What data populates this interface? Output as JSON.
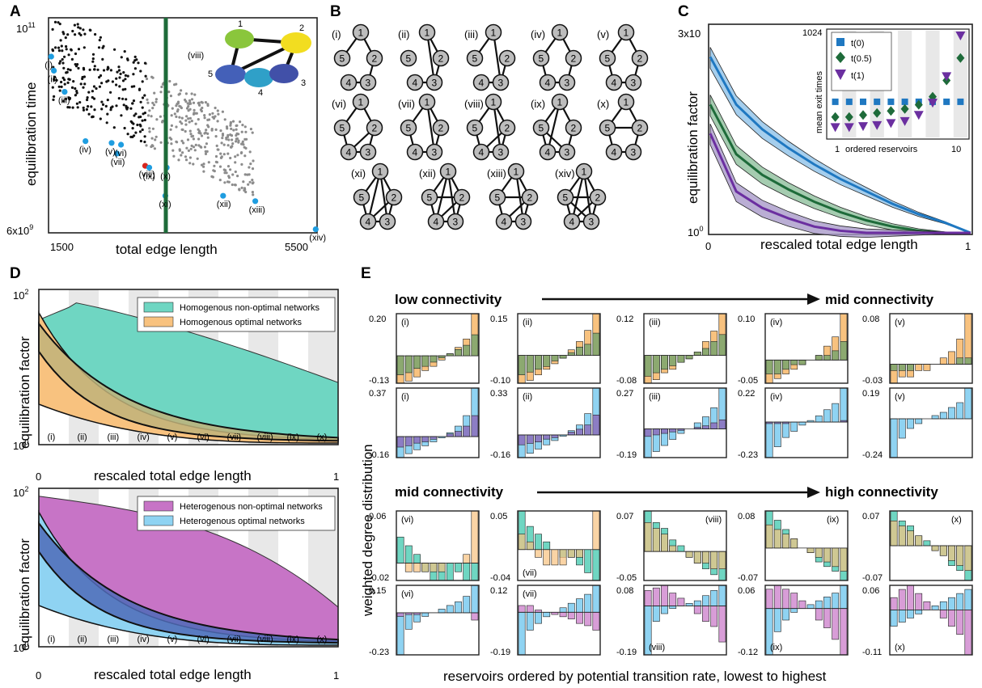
{
  "panel_labels": {
    "A": "A",
    "B": "B",
    "C": "C",
    "D": "D",
    "E": "E"
  },
  "colors": {
    "black": "#111111",
    "gray": "#8c8c8c",
    "blue": "#1f9de0",
    "red": "#d7261e",
    "green": "#2e7d4a",
    "purple": "#6b2fa0",
    "teal": "#6fd6c2",
    "orange": "#f8c27f",
    "hetero_purple": "#c774c6",
    "light_blue": "#8fd3f2",
    "band": "#e8e8e8"
  },
  "panelA": {
    "ylabel": "equilibration time",
    "xlabel": "total edge length",
    "ytick_top": "10",
    "ytick_top_sup": "11",
    "ytick_bottom": "6x10",
    "ytick_bottom_sup": "9",
    "xtick_left": "1500",
    "xtick_right": "5500",
    "inset_network_label": "(viii)",
    "inset_nodes": [
      "1",
      "2",
      "3",
      "4",
      "5"
    ],
    "point_labels": [
      "(i)",
      "(ii)",
      "(iii)",
      "(iv)",
      "(v)",
      "(vi)",
      "(vii)",
      "(viii)",
      "(ix)",
      "(x)",
      "(xi)",
      "(xii)",
      "(xiii)",
      "(xiv)"
    ]
  },
  "panelB": {
    "network_labels": [
      "(i)",
      "(ii)",
      "(iii)",
      "(iv)",
      "(v)",
      "(vi)",
      "(vii)",
      "(viii)",
      "(ix)",
      "(x)",
      "(xi)",
      "(xii)",
      "(xiii)",
      "(xiv)"
    ],
    "node_labels": [
      "1",
      "2",
      "3",
      "4",
      "5"
    ]
  },
  "panelC": {
    "ylabel": "equilibration factor",
    "xlabel": "rescaled total edge length",
    "ytick_top": "3x10",
    "ytick_bottom": "10",
    "ytick_bottom_sup": "0",
    "xtick_left": "0",
    "xtick_right": "1",
    "inset": {
      "ylabel": "mean exit times",
      "xlabel": "ordered reservoirs",
      "ytick_top": "1024",
      "xtick_left": "1",
      "xtick_right": "10",
      "legend": [
        "t(0)",
        "t(0.5)",
        "t(1)"
      ]
    }
  },
  "panelD": {
    "ylabel": "equilibration factor",
    "xlabel": "rescaled total edge length",
    "ytick_top": "10",
    "ytick_top_sup": "2",
    "ytick_bottom": "10",
    "ytick_bottom_sup": "0",
    "xtick_left": "0",
    "xtick_right": "1",
    "band_labels": [
      "(i)",
      "(ii)",
      "(iii)",
      "(iv)",
      "(v)",
      "(vi)",
      "(vii)",
      "(viii)",
      "(ix)",
      "(x)"
    ],
    "top_legend": [
      "Homogenous non-optimal networks",
      "Homogenous optimal networks"
    ],
    "bottom_legend": [
      "Heterogenous non-optimal networks",
      "Heterogenous optimal networks"
    ]
  },
  "panelE": {
    "ylabel": "weighted degree distribution",
    "xlabel": "reservoirs ordered by potential transition rate, lowest to highest",
    "row1_left": "low connectivity",
    "row1_right": "mid connectivity",
    "row2_left": "mid connectivity",
    "row2_right": "high connectivity"
  },
  "chart_data": [
    {
      "type": "scatter",
      "panel": "A",
      "xlabel": "total edge length",
      "ylabel": "equilibration time",
      "xlim": [
        1500,
        5500
      ],
      "ylim_log10": [
        9.78,
        11
      ],
      "highlighted": [
        {
          "label": "(i)",
          "x": 1540,
          "y_log10": 10.78
        },
        {
          "label": "(ii)",
          "x": 1580,
          "y_log10": 10.7
        },
        {
          "label": "(iii)",
          "x": 1740,
          "y_log10": 10.58
        },
        {
          "label": "(iv)",
          "x": 2050,
          "y_log10": 10.3
        },
        {
          "label": "(v)",
          "x": 2440,
          "y_log10": 10.29
        },
        {
          "label": "(vi)",
          "x": 2580,
          "y_log10": 10.28
        },
        {
          "label": "(vii)",
          "x": 2520,
          "y_log10": 10.23
        },
        {
          "label": "(viii)",
          "x": 2940,
          "y_log10": 10.16
        },
        {
          "label": "(ix)",
          "x": 3000,
          "y_log10": 10.15
        },
        {
          "label": "(x)",
          "x": 3260,
          "y_log10": 10.15
        },
        {
          "label": "(xi)",
          "x": 3240,
          "y_log10": 9.99
        },
        {
          "label": "(xii)",
          "x": 4100,
          "y_log10": 9.99
        },
        {
          "label": "(xiii)",
          "x": 4580,
          "y_log10": 9.96
        },
        {
          "label": "(xiv)",
          "x": 5480,
          "y_log10": 9.8
        }
      ]
    },
    {
      "type": "line",
      "panel": "C",
      "xlabel": "rescaled total edge length",
      "ylabel": "equilibration factor",
      "xlim": [
        0,
        1
      ],
      "series": [
        {
          "color": "blue",
          "y": [
            0.85,
            0.62,
            0.5,
            0.41,
            0.33,
            0.26,
            0.2,
            0.14,
            0.09,
            0.05,
            0.0
          ]
        },
        {
          "color": "green",
          "y": [
            0.62,
            0.38,
            0.28,
            0.21,
            0.15,
            0.1,
            0.06,
            0.03,
            0.01,
            0.0,
            0.0
          ]
        },
        {
          "color": "purple",
          "y": [
            0.48,
            0.2,
            0.12,
            0.07,
            0.03,
            0.01,
            0.0,
            0.0,
            0.0,
            0.0,
            0.0
          ]
        }
      ]
    },
    {
      "type": "scatter",
      "panel": "C-inset",
      "xlabel": "ordered reservoirs",
      "ylabel": "mean exit times",
      "x": [
        1,
        2,
        3,
        4,
        5,
        6,
        7,
        8,
        9,
        10
      ],
      "series": [
        {
          "name": "t(0)",
          "values": [
            0.35,
            0.35,
            0.35,
            0.35,
            0.35,
            0.35,
            0.35,
            0.35,
            0.35,
            0.35
          ]
        },
        {
          "name": "t(0.5)",
          "values": [
            0.2,
            0.2,
            0.22,
            0.24,
            0.26,
            0.28,
            0.32,
            0.4,
            0.56,
            0.78
          ]
        },
        {
          "name": "t(1)",
          "values": [
            0.1,
            0.1,
            0.11,
            0.12,
            0.14,
            0.16,
            0.22,
            0.34,
            0.6,
            1.0
          ]
        }
      ]
    },
    {
      "type": "area",
      "panel": "D",
      "xlabel": "rescaled total edge length",
      "ylabel": "equilibration factor",
      "xlim": [
        0,
        1
      ],
      "ylim_log10": [
        0,
        2
      ]
    },
    {
      "type": "bar",
      "panel": "E",
      "ylabel": "weighted degree distribution",
      "xlabel": "reservoirs ordered by potential transition rate, lowest to highest",
      "subplots": [
        {
          "label": "(i)",
          "ymax": "0.20",
          "ymin": "-0.13",
          "a": [
            -0.13,
            -0.12,
            -0.1,
            -0.07,
            -0.05,
            -0.02,
            0.01,
            0.04,
            0.08,
            0.2
          ],
          "b": [
            -0.09,
            -0.08,
            -0.06,
            -0.05,
            -0.03,
            -0.01,
            0.01,
            0.03,
            0.05,
            0.1
          ]
        },
        {
          "label": "(ii)",
          "ymax": "0.15",
          "ymin": "-0.10",
          "a": [
            -0.1,
            -0.09,
            -0.07,
            -0.05,
            -0.03,
            -0.01,
            0.02,
            0.05,
            0.09,
            0.15
          ],
          "b": [
            -0.07,
            -0.06,
            -0.05,
            -0.04,
            -0.02,
            -0.01,
            0.01,
            0.03,
            0.04,
            0.08
          ]
        },
        {
          "label": "(iii)",
          "ymax": "0.12",
          "ymin": "-0.08",
          "a": [
            -0.08,
            -0.07,
            -0.05,
            -0.04,
            -0.02,
            -0.01,
            0.01,
            0.04,
            0.07,
            0.12
          ],
          "b": [
            -0.06,
            -0.05,
            -0.04,
            -0.03,
            -0.02,
            -0.01,
            0.01,
            0.02,
            0.04,
            0.06
          ]
        },
        {
          "label": "(iv)",
          "ymax": "0.10",
          "ymin": "-0.05",
          "a": [
            -0.05,
            -0.04,
            -0.03,
            -0.02,
            -0.01,
            0.0,
            0.01,
            0.03,
            0.05,
            0.1
          ],
          "b": [
            -0.03,
            -0.03,
            -0.02,
            -0.01,
            -0.01,
            0.0,
            0.01,
            0.01,
            0.02,
            0.04
          ]
        },
        {
          "label": "(v)",
          "ymax": "0.08",
          "ymin": "-0.03",
          "a": [
            -0.03,
            -0.02,
            -0.02,
            -0.01,
            -0.01,
            0.0,
            0.01,
            0.02,
            0.04,
            0.08
          ],
          "b": [
            -0.01,
            -0.01,
            -0.01,
            0.0,
            0.0,
            0.0,
            0.0,
            0.0,
            0.01,
            0.01
          ]
        },
        {
          "label": "(i)",
          "ymax": "0.37",
          "ymin": "-0.16",
          "a": [
            -0.16,
            -0.13,
            -0.1,
            -0.07,
            -0.04,
            -0.01,
            0.03,
            0.08,
            0.16,
            0.37
          ],
          "b": [
            -0.08,
            -0.07,
            -0.05,
            -0.04,
            -0.02,
            0.0,
            0.02,
            0.04,
            0.08,
            0.16
          ]
        },
        {
          "label": "(ii)",
          "ymax": "0.33",
          "ymin": "-0.16",
          "a": [
            -0.16,
            -0.13,
            -0.1,
            -0.07,
            -0.04,
            -0.01,
            0.03,
            0.07,
            0.15,
            0.33
          ],
          "b": [
            -0.07,
            -0.06,
            -0.05,
            -0.03,
            -0.02,
            0.0,
            0.02,
            0.04,
            0.07,
            0.14
          ]
        },
        {
          "label": "(iii)",
          "ymax": "0.27",
          "ymin": "-0.19",
          "a": [
            -0.19,
            -0.15,
            -0.11,
            -0.07,
            -0.03,
            0.0,
            0.04,
            0.08,
            0.14,
            0.27
          ],
          "b": [
            -0.05,
            -0.04,
            -0.03,
            -0.02,
            -0.01,
            0.0,
            0.01,
            0.02,
            0.04,
            0.06
          ]
        },
        {
          "label": "(iv)",
          "ymax": "0.22",
          "ymin": "-0.23",
          "a": [
            -0.23,
            -0.16,
            -0.1,
            -0.06,
            -0.02,
            0.01,
            0.04,
            0.08,
            0.12,
            0.22
          ],
          "b": [
            -0.01,
            -0.01,
            -0.01,
            0.0,
            0.0,
            0.0,
            0.0,
            0.0,
            0.0,
            0.01
          ]
        },
        {
          "label": "(v)",
          "ymax": "0.19",
          "ymin": "-0.24",
          "a": [
            -0.24,
            -0.12,
            -0.06,
            -0.03,
            0.0,
            0.02,
            0.04,
            0.07,
            0.1,
            0.19
          ],
          "b": [
            0.0,
            0.0,
            0.0,
            0.0,
            0.0,
            0.0,
            0.0,
            0.0,
            0.0,
            0.0
          ]
        },
        {
          "label": "(vi)",
          "ymax": "0.06",
          "ymin": "-0.02",
          "a": [
            0.03,
            0.02,
            0.01,
            -0.01,
            -0.02,
            -0.02,
            -0.02,
            -0.01,
            -0.02,
            -0.02
          ],
          "b": [
            0.0,
            -0.01,
            -0.01,
            -0.01,
            -0.01,
            -0.01,
            0.0,
            0.0,
            0.01,
            0.06
          ]
        },
        {
          "label": "(vii)",
          "ymax": "0.05",
          "ymin": "-0.04",
          "a": [
            0.05,
            0.03,
            0.02,
            0.01,
            0.0,
            -0.01,
            -0.01,
            -0.02,
            -0.03,
            -0.04
          ],
          "b": [
            0.02,
            0.01,
            -0.01,
            -0.02,
            -0.02,
            -0.02,
            -0.01,
            -0.01,
            0.0,
            0.05
          ]
        },
        {
          "label": "(viii)",
          "ymax": "0.07",
          "ymin": "-0.05",
          "a": [
            0.07,
            0.05,
            0.04,
            0.02,
            0.01,
            -0.01,
            -0.02,
            -0.03,
            -0.04,
            -0.05
          ],
          "b": [
            0.05,
            0.04,
            0.03,
            0.01,
            0.0,
            -0.01,
            -0.02,
            -0.02,
            -0.03,
            -0.03
          ]
        },
        {
          "label": "(ix)",
          "ymax": "0.08",
          "ymin": "-0.07",
          "a": [
            0.08,
            0.06,
            0.04,
            0.02,
            0.0,
            -0.01,
            -0.03,
            -0.04,
            -0.05,
            -0.07
          ],
          "b": [
            0.05,
            0.04,
            0.03,
            0.02,
            0.0,
            -0.01,
            -0.02,
            -0.03,
            -0.04,
            -0.05
          ]
        },
        {
          "label": "(x)",
          "ymax": "0.07",
          "ymin": "-0.07",
          "a": [
            0.07,
            0.05,
            0.04,
            0.02,
            0.01,
            -0.01,
            -0.02,
            -0.04,
            -0.05,
            -0.07
          ],
          "b": [
            0.05,
            0.04,
            0.03,
            0.02,
            0.0,
            -0.01,
            -0.02,
            -0.03,
            -0.04,
            -0.05
          ]
        },
        {
          "label": "(vi)",
          "ymax": "0.15",
          "ymin": "-0.23",
          "a": [
            -0.23,
            -0.09,
            -0.05,
            -0.02,
            0.0,
            0.02,
            0.04,
            0.06,
            0.09,
            0.15
          ],
          "b": [
            -0.02,
            -0.01,
            -0.01,
            0.0,
            0.0,
            0.0,
            0.0,
            0.0,
            0.0,
            -0.04
          ]
        },
        {
          "label": "(vii)",
          "ymax": "0.12",
          "ymin": "-0.19",
          "a": [
            -0.19,
            -0.08,
            -0.05,
            -0.02,
            0.0,
            0.02,
            0.04,
            0.06,
            0.08,
            0.12
          ],
          "b": [
            0.03,
            0.03,
            0.01,
            0.0,
            -0.01,
            -0.02,
            -0.03,
            -0.05,
            -0.06,
            -0.08
          ]
        },
        {
          "label": "(viii)",
          "ymax": "0.08",
          "ymin": "-0.19",
          "a": [
            -0.19,
            -0.06,
            -0.03,
            -0.01,
            0.0,
            0.01,
            0.02,
            0.04,
            0.06,
            0.08
          ],
          "b": [
            0.06,
            0.07,
            0.08,
            0.05,
            0.03,
            0.0,
            -0.03,
            -0.06,
            -0.08,
            -0.14
          ]
        },
        {
          "label": "(ix)",
          "ymax": "0.06",
          "ymin": "-0.12",
          "a": [
            -0.12,
            -0.06,
            -0.03,
            -0.01,
            0.0,
            0.01,
            0.02,
            0.03,
            0.04,
            0.06
          ],
          "b": [
            0.05,
            0.06,
            0.05,
            0.04,
            0.02,
            0.0,
            -0.03,
            -0.05,
            -0.08,
            -0.12
          ]
        },
        {
          "label": "(x)",
          "ymax": "0.06",
          "ymin": "-0.11",
          "a": [
            -0.04,
            -0.03,
            -0.02,
            -0.01,
            0.0,
            0.01,
            0.02,
            0.03,
            0.04,
            0.05
          ],
          "b": [
            0.03,
            0.05,
            0.06,
            0.04,
            0.02,
            0.0,
            -0.02,
            -0.04,
            -0.06,
            -0.11
          ]
        }
      ]
    }
  ]
}
